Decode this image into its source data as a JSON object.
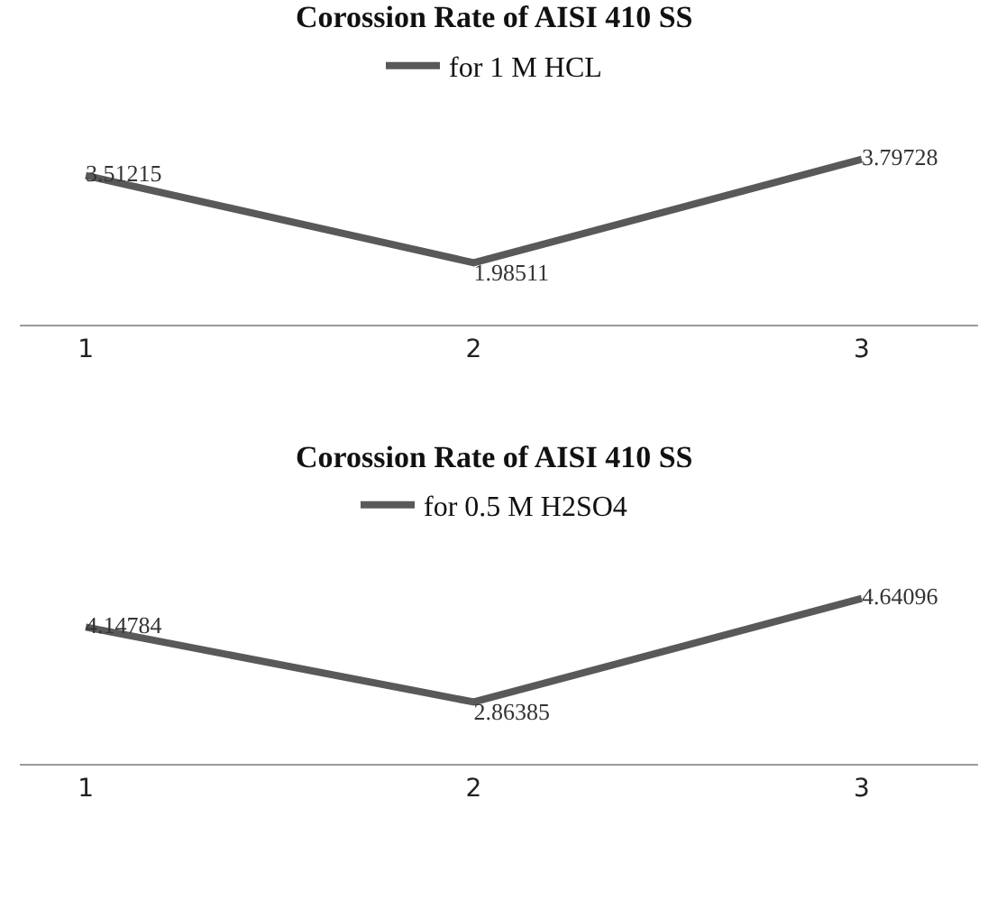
{
  "chart_data": [
    {
      "type": "line",
      "title": "Corossion Rate of AISI 410 SS",
      "categories": [
        "1",
        "2",
        "3"
      ],
      "series": [
        {
          "name": "for 1 M HCL",
          "color": "#595959",
          "values": [
            3.51215,
            1.98511,
            3.79728
          ]
        }
      ],
      "data_labels": true,
      "legend": "top",
      "marker": "none",
      "line_style": "solid",
      "grid": false
    },
    {
      "type": "line",
      "title": "Corossion Rate of AISI 410 SS",
      "categories": [
        "1",
        "2",
        "3"
      ],
      "series": [
        {
          "name": "for 0.5 M H2SO4",
          "color": "#595959",
          "values": [
            4.14784,
            2.86385,
            4.64096
          ]
        }
      ],
      "data_labels": true,
      "legend": "top",
      "marker": "none",
      "line_style": "solid",
      "grid": false
    }
  ]
}
